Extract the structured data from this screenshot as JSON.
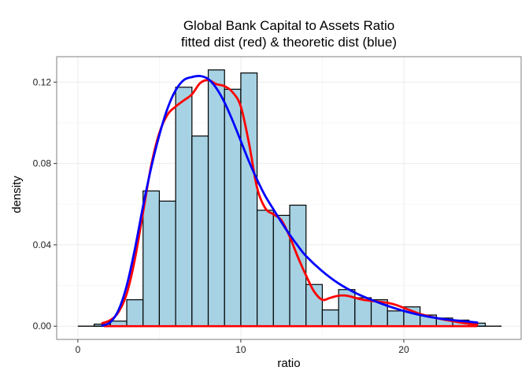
{
  "chart_data": {
    "type": "histogram",
    "title_lines": [
      "Global Bank Capital to Assets Ratio",
      "fitted dist (red) & theoretic dist (blue)"
    ],
    "xlabel": "ratio",
    "ylabel": "density",
    "xlim": [
      -1.3,
      27.2
    ],
    "ylim": [
      -0.0065,
      0.1325
    ],
    "x_ticks": [
      0,
      10,
      20
    ],
    "x_tick_labels": [
      "0",
      "10",
      "20"
    ],
    "y_ticks": [
      0.0,
      0.04,
      0.08,
      0.12
    ],
    "y_tick_labels": [
      "0.00",
      "0.04",
      "0.08",
      "0.12"
    ],
    "bin_width": 1,
    "bar_fill": "#a6d2e3",
    "bar_stroke": "#000000",
    "bins": [
      {
        "x0": 1,
        "x1": 2,
        "density": 0.001
      },
      {
        "x0": 2,
        "x1": 3,
        "density": 0.0025
      },
      {
        "x0": 3,
        "x1": 4,
        "density": 0.013
      },
      {
        "x0": 4,
        "x1": 5,
        "density": 0.0665
      },
      {
        "x0": 5,
        "x1": 6,
        "density": 0.0615
      },
      {
        "x0": 6,
        "x1": 7,
        "density": 0.1175
      },
      {
        "x0": 7,
        "x1": 8,
        "density": 0.0935
      },
      {
        "x0": 8,
        "x1": 9,
        "density": 0.126
      },
      {
        "x0": 9,
        "x1": 10,
        "density": 0.1165
      },
      {
        "x0": 10,
        "x1": 11,
        "density": 0.1245
      },
      {
        "x0": 11,
        "x1": 12,
        "density": 0.057
      },
      {
        "x0": 12,
        "x1": 13,
        "density": 0.0545
      },
      {
        "x0": 13,
        "x1": 14,
        "density": 0.0595
      },
      {
        "x0": 14,
        "x1": 15,
        "density": 0.0205
      },
      {
        "x0": 15,
        "x1": 16,
        "density": 0.008
      },
      {
        "x0": 16,
        "x1": 17,
        "density": 0.018
      },
      {
        "x0": 17,
        "x1": 18,
        "density": 0.014
      },
      {
        "x0": 18,
        "x1": 19,
        "density": 0.013
      },
      {
        "x0": 19,
        "x1": 20,
        "density": 0.0075
      },
      {
        "x0": 20,
        "x1": 21,
        "density": 0.0095
      },
      {
        "x0": 21,
        "x1": 22,
        "density": 0.0055
      },
      {
        "x0": 22,
        "x1": 23,
        "density": 0.004
      },
      {
        "x0": 23,
        "x1": 24,
        "density": 0.003
      },
      {
        "x0": 24,
        "x1": 25,
        "density": 0.0015
      }
    ],
    "baseline_segments": [
      {
        "color": "#000000",
        "x": [
          0,
          26
        ],
        "y": [
          0,
          0
        ]
      },
      {
        "color": "#ff0000",
        "x": [
          1.6,
          24.5
        ],
        "y": [
          0,
          0
        ]
      }
    ],
    "series": [
      {
        "color": "#ff0000",
        "x": [
          1.5,
          2.0,
          2.5,
          3.0,
          3.5,
          4.0,
          4.5,
          5.0,
          5.5,
          6.0,
          6.5,
          7.0,
          7.5,
          8.0,
          8.5,
          9.0,
          9.5,
          10.0,
          10.5,
          11.0,
          11.5,
          12.0,
          12.5,
          13.0,
          13.5,
          14.0,
          14.5,
          15.0,
          15.5,
          16.0,
          16.5,
          17.0,
          17.5,
          18.0,
          18.5,
          19.0,
          19.5,
          20.0,
          20.5,
          21.0,
          21.5,
          22.0,
          22.5,
          23.0,
          23.5,
          24.0,
          24.5
        ],
        "y": [
          0.0015,
          0.003,
          0.007,
          0.016,
          0.033,
          0.056,
          0.079,
          0.095,
          0.104,
          0.108,
          0.111,
          0.114,
          0.1195,
          0.121,
          0.119,
          0.118,
          0.115,
          0.108,
          0.09,
          0.068,
          0.058,
          0.055,
          0.052,
          0.044,
          0.034,
          0.025,
          0.017,
          0.013,
          0.014,
          0.015,
          0.015,
          0.014,
          0.013,
          0.0125,
          0.012,
          0.0115,
          0.0105,
          0.009,
          0.0075,
          0.006,
          0.005,
          0.004,
          0.0032,
          0.0025,
          0.0018,
          0.0012,
          0.0008
        ]
      },
      {
        "color": "#0000ff",
        "x": [
          1.5,
          2.0,
          2.5,
          3.0,
          3.5,
          4.0,
          4.5,
          5.0,
          5.5,
          6.0,
          6.5,
          7.0,
          7.5,
          8.0,
          8.5,
          9.0,
          9.5,
          10.0,
          10.5,
          11.0,
          11.5,
          12.0,
          12.5,
          13.0,
          13.5,
          14.0,
          15.0,
          16.0,
          17.0,
          18.0,
          19.0,
          20.0,
          21.0,
          22.0,
          23.0,
          24.0,
          24.5
        ],
        "y": [
          0.0003,
          0.002,
          0.008,
          0.02,
          0.038,
          0.059,
          0.078,
          0.094,
          0.107,
          0.116,
          0.121,
          0.1225,
          0.123,
          0.1215,
          0.117,
          0.11,
          0.101,
          0.091,
          0.081,
          0.072,
          0.064,
          0.0575,
          0.051,
          0.045,
          0.0395,
          0.0345,
          0.027,
          0.021,
          0.0165,
          0.013,
          0.01,
          0.0075,
          0.0055,
          0.004,
          0.003,
          0.0022,
          0.0018
        ]
      }
    ]
  }
}
